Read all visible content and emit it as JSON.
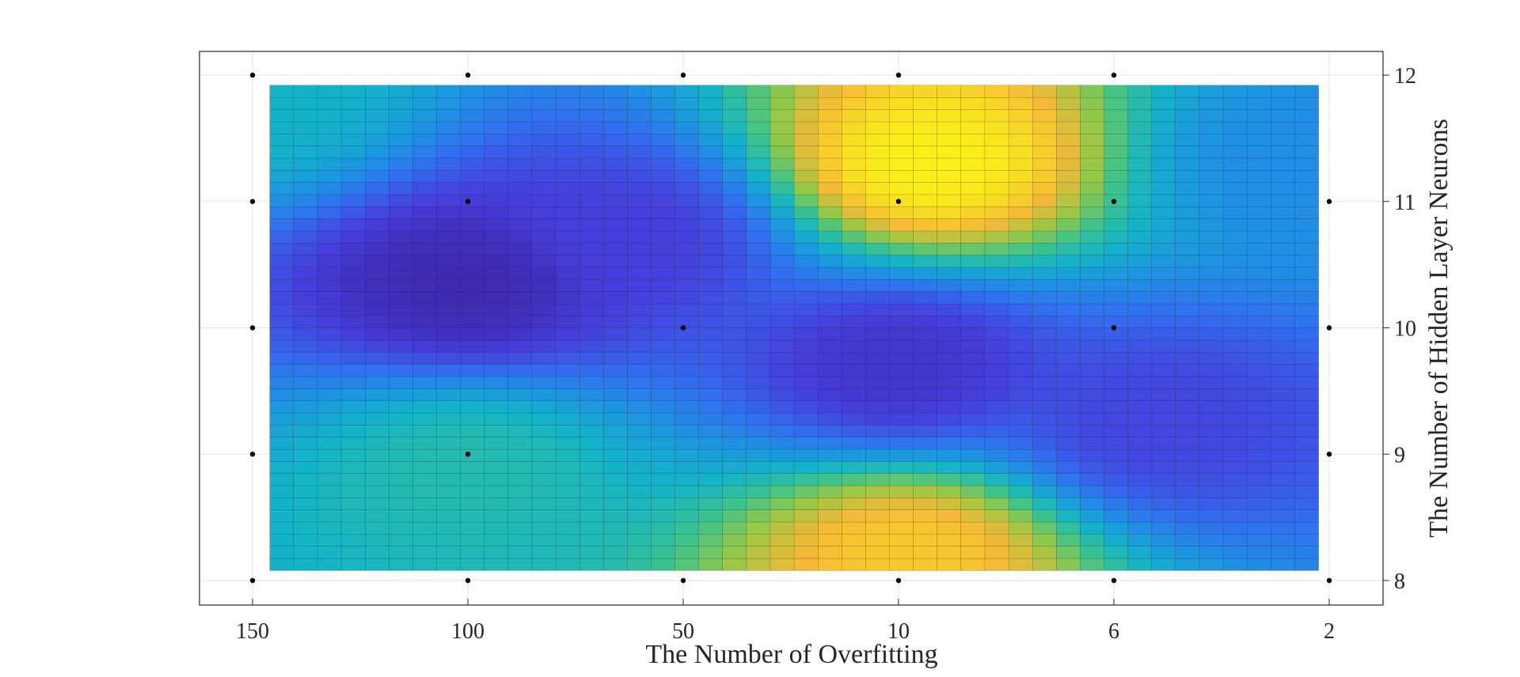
{
  "chart_data": {
    "type": "heatmap",
    "title": "",
    "xlabel": "The Number of Overfitting",
    "ylabel": "The Number of Hidden Layer Neurons",
    "x_ticks": [
      "150",
      "100",
      "50",
      "10",
      "6",
      "2"
    ],
    "y_ticks": [
      "8",
      "9",
      "10",
      "11",
      "12"
    ],
    "ylim": [
      8,
      12
    ],
    "grid": true,
    "colormap": "parula",
    "x_tick_positions": [
      0,
      1,
      2,
      3,
      4,
      5
    ],
    "data_x_range": [
      0.08,
      4.95
    ],
    "data_y_range": [
      8.08,
      11.92
    ],
    "surface_hotspots": [
      {
        "x_index": 1.0,
        "y": 10.35,
        "value": 0.02
      },
      {
        "x_index": 1.75,
        "y": 10.7,
        "value": 0.12
      },
      {
        "x_index": 3.15,
        "y": 11.3,
        "value": 1.0
      },
      {
        "x_index": 3.05,
        "y": 8.2,
        "value": 0.9
      },
      {
        "x_index": 3.0,
        "y": 9.7,
        "value": 0.08
      },
      {
        "x_index": 4.2,
        "y": 9.25,
        "value": 0.14
      },
      {
        "x_index": 1.0,
        "y": 8.9,
        "value": 0.55
      },
      {
        "x_index": 0.0,
        "y": 11.8,
        "value": 0.5
      },
      {
        "x_index": 4.9,
        "y": 11.3,
        "value": 0.35
      }
    ],
    "markers": [
      {
        "x_index": 0,
        "y": 12
      },
      {
        "x_index": 1,
        "y": 12
      },
      {
        "x_index": 2,
        "y": 12
      },
      {
        "x_index": 3,
        "y": 12
      },
      {
        "x_index": 4,
        "y": 12
      },
      {
        "x_index": 0,
        "y": 11
      },
      {
        "x_index": 1,
        "y": 11
      },
      {
        "x_index": 3,
        "y": 11
      },
      {
        "x_index": 4,
        "y": 11
      },
      {
        "x_index": 5,
        "y": 11
      },
      {
        "x_index": 0,
        "y": 10
      },
      {
        "x_index": 2,
        "y": 10
      },
      {
        "x_index": 4,
        "y": 10
      },
      {
        "x_index": 5,
        "y": 10
      },
      {
        "x_index": 0,
        "y": 9
      },
      {
        "x_index": 1,
        "y": 9
      },
      {
        "x_index": 5,
        "y": 9
      },
      {
        "x_index": 0,
        "y": 8
      },
      {
        "x_index": 1,
        "y": 8
      },
      {
        "x_index": 2,
        "y": 8
      },
      {
        "x_index": 3,
        "y": 8
      },
      {
        "x_index": 4,
        "y": 8
      },
      {
        "x_index": 5,
        "y": 8
      }
    ],
    "colors": {
      "axes": "#262626",
      "grid": "#e6e6e6",
      "mesh_edge": "#1a1a1a",
      "marker": "#000000"
    }
  }
}
